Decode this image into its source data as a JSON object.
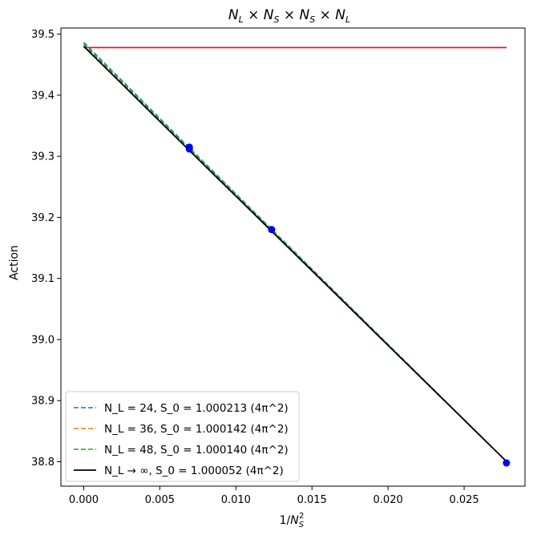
{
  "chart_data": {
    "type": "line",
    "title": "N_L × N_S × N_S × N_L",
    "xlabel": "1/N_S^2",
    "ylabel": "Action",
    "xlim": [
      -0.0015,
      0.029
    ],
    "ylim": [
      38.76,
      39.51
    ],
    "x_ticks": [
      0.0,
      0.005,
      0.01,
      0.015,
      0.02,
      0.025
    ],
    "x_tick_labels": [
      "0.000",
      "0.005",
      "0.010",
      "0.015",
      "0.020",
      "0.025"
    ],
    "y_ticks": [
      38.8,
      38.9,
      39.0,
      39.1,
      39.2,
      39.3,
      39.4,
      39.5
    ],
    "y_tick_labels": [
      "38.8",
      "38.9",
      "39.0",
      "39.1",
      "39.2",
      "39.3",
      "39.4",
      "39.5"
    ],
    "grid": false,
    "legend_position": "lower-left",
    "series": [
      {
        "name": "N_L = 24, S_0 = 1.000213 (4π^2)",
        "style": "dashed",
        "color": "#1f77b4",
        "x": [
          0.0,
          0.0069,
          0.0278
        ],
        "y": [
          39.4864,
          39.3149,
          38.8
        ]
      },
      {
        "name": "N_L = 36, S_0 = 1.000142 (4π^2)",
        "style": "dashed",
        "color": "#ff7f0e",
        "x": [
          0.0,
          0.0069,
          0.0278
        ],
        "y": [
          39.4836,
          39.313,
          38.8
        ]
      },
      {
        "name": "N_L = 48, S_0 = 1.000140 (4π^2)",
        "style": "dashed",
        "color": "#2ca02c",
        "x": [
          0.0,
          0.0069,
          0.0278
        ],
        "y": [
          39.4835,
          39.3129,
          38.8
        ]
      },
      {
        "name": "N_L → ∞, S_0 = 1.000052 (4π^2)",
        "style": "solid",
        "color": "#000000",
        "x": [
          0.0,
          0.0069,
          0.0278
        ],
        "y": [
          39.4801,
          39.3105,
          38.8
        ]
      }
    ],
    "reference_line": {
      "color": "#e41a1c",
      "x": [
        0.0,
        0.0278
      ],
      "y": [
        39.478,
        39.478
      ]
    },
    "points": {
      "color": "#0000ee",
      "x": [
        0.00694,
        0.00694,
        0.01235,
        0.02778
      ],
      "y": [
        39.315,
        39.312,
        39.18,
        38.798
      ]
    }
  }
}
